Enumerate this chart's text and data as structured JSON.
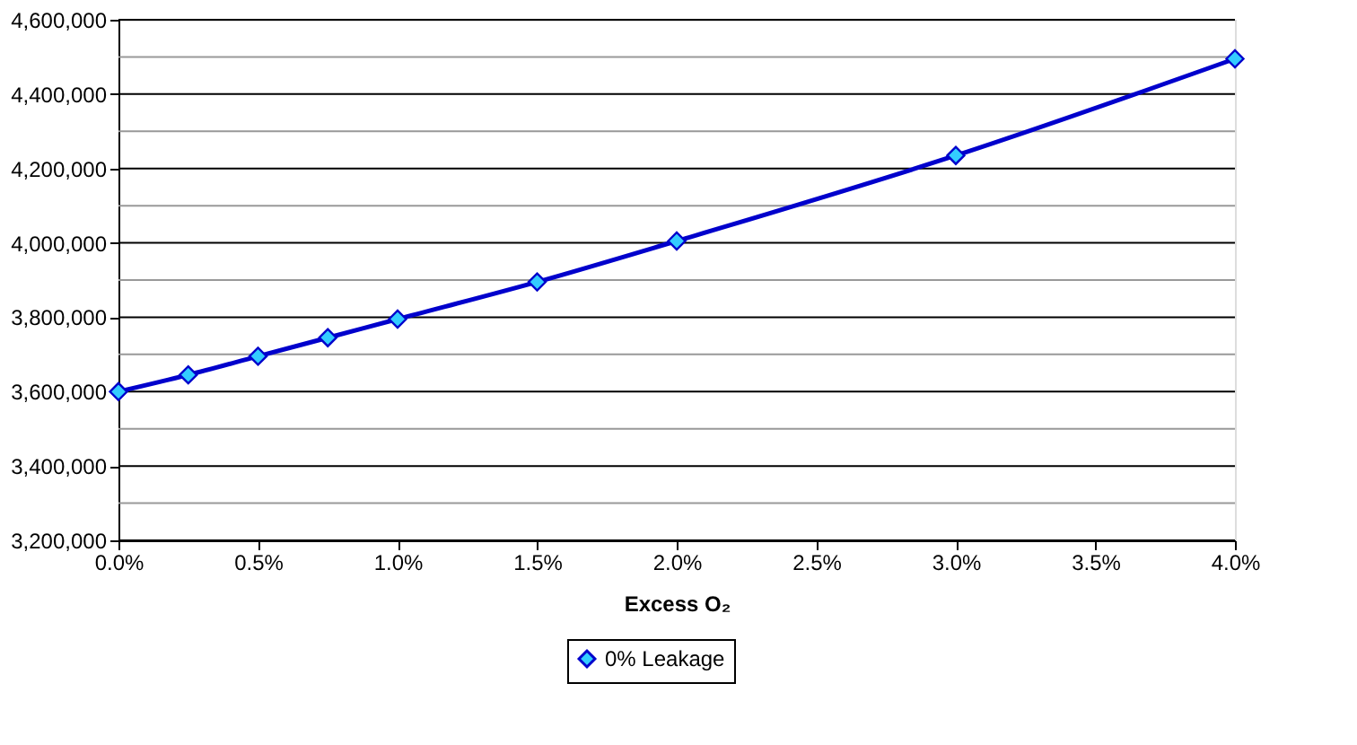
{
  "chart_data": {
    "type": "line",
    "x": [
      0,
      0.25,
      0.5,
      0.75,
      1.0,
      1.5,
      2.0,
      3.0,
      4.0
    ],
    "series": [
      {
        "name": "0% Leakage",
        "color": "#0000cc",
        "values": [
          3600000,
          3645000,
          3695000,
          3745000,
          3795000,
          3895000,
          4005000,
          4235000,
          4495000
        ]
      }
    ],
    "xlabel": "Excess O₂",
    "xlim": [
      0,
      4
    ],
    "xticks": [
      {
        "value": 0,
        "label": "0.0%"
      },
      {
        "value": 0.5,
        "label": "0.5%"
      },
      {
        "value": 1.0,
        "label": "1.0%"
      },
      {
        "value": 1.5,
        "label": "1.5%"
      },
      {
        "value": 2.0,
        "label": "2.0%"
      },
      {
        "value": 2.5,
        "label": "2.5%"
      },
      {
        "value": 3.0,
        "label": "3.0%"
      },
      {
        "value": 3.5,
        "label": "3.5%"
      },
      {
        "value": 4.0,
        "label": "4.0%"
      }
    ],
    "ylim": [
      3200000,
      4600000
    ],
    "yticks": [
      {
        "value": 3200000,
        "label": "3,200,000"
      },
      {
        "value": 3300000,
        "label": null
      },
      {
        "value": 3400000,
        "label": "3,400,000"
      },
      {
        "value": 3500000,
        "label": null
      },
      {
        "value": 3600000,
        "label": "3,600,000"
      },
      {
        "value": 3700000,
        "label": null
      },
      {
        "value": 3800000,
        "label": "3,800,000"
      },
      {
        "value": 3900000,
        "label": null
      },
      {
        "value": 4000000,
        "label": "4,000,000"
      },
      {
        "value": 4100000,
        "label": null
      },
      {
        "value": 4200000,
        "label": "4,200,000"
      },
      {
        "value": 4300000,
        "label": null
      },
      {
        "value": 4400000,
        "label": "4,400,000"
      },
      {
        "value": 4500000,
        "label": null
      },
      {
        "value": 4600000,
        "label": "4,600,000"
      }
    ],
    "grid": "y",
    "legend": "bottom",
    "marker": "diamond",
    "line_style": "solid"
  }
}
